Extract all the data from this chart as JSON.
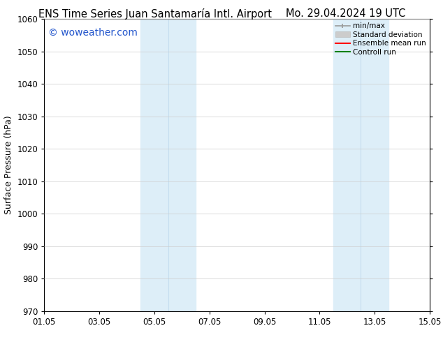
{
  "title_left": "ENS Time Series Juan Santamaría Intl. Airport",
  "title_right": "Mo. 29.04.2024 19 UTC",
  "ylabel": "Surface Pressure (hPa)",
  "ylim": [
    970,
    1060
  ],
  "yticks": [
    970,
    980,
    990,
    1000,
    1010,
    1020,
    1030,
    1040,
    1050,
    1060
  ],
  "xtick_labels": [
    "01.05",
    "03.05",
    "05.05",
    "07.05",
    "09.05",
    "11.05",
    "13.05",
    "15.05"
  ],
  "xtick_positions": [
    0,
    2,
    4,
    6,
    8,
    10,
    12,
    14
  ],
  "xlim": [
    0,
    14
  ],
  "shaded_bands": [
    {
      "x_start": 3.5,
      "x_end": 4.0
    },
    {
      "x_start": 4.0,
      "x_end": 5.5
    },
    {
      "x_start": 10.5,
      "x_end": 11.0
    },
    {
      "x_start": 11.0,
      "x_end": 12.5
    }
  ],
  "shade_color": "#ddeef8",
  "shade_alpha": 1.0,
  "watermark_text": "© woweather.com",
  "watermark_color": "#2255cc",
  "watermark_fontsize": 10,
  "legend_labels": [
    "min/max",
    "Standard deviation",
    "Ensemble mean run",
    "Controll run"
  ],
  "bg_color": "#ffffff",
  "grid_color": "#cccccc",
  "title_fontsize": 10.5,
  "axis_fontsize": 9,
  "tick_fontsize": 8.5
}
